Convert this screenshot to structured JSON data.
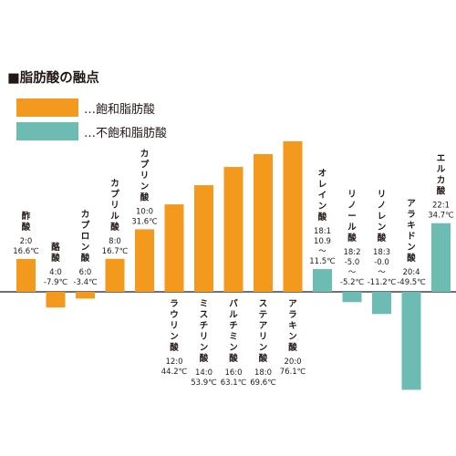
{
  "title": "■脂肪酸の融点",
  "legend": [
    {
      "label": "…飽和脂肪酸",
      "color": "#f39a1e"
    },
    {
      "label": "…不飽和脂肪酸",
      "color": "#6dbcb3"
    }
  ],
  "chart_data": {
    "type": "bar",
    "unit": "℃",
    "grid": false,
    "ylim": [
      -50,
      80
    ],
    "categories": [
      "酢酸",
      "酪酸",
      "カプロン酸",
      "カプリル酸",
      "カプリン酸",
      "ラウリン酸",
      "ミスチリン酸",
      "パルチミン酸",
      "ステアリン酸",
      "アラキン酸",
      "オレイン酸",
      "リノール酸",
      "リノレン酸",
      "アラキドン酸",
      "エルカ酸"
    ],
    "series": [
      {
        "name": "…飽和脂肪酸",
        "values": [
          16.6,
          -7.9,
          -3.4,
          16.7,
          31.6,
          44.2,
          53.9,
          63.1,
          69.6,
          76.1,
          null,
          null,
          null,
          null,
          null
        ]
      },
      {
        "name": "…不飽和脂肪酸",
        "values": [
          null,
          null,
          null,
          null,
          null,
          null,
          null,
          null,
          null,
          null,
          11.5,
          -5.2,
          -11.2,
          -49.5,
          34.7
        ]
      }
    ],
    "labels": [
      [
        "2:0",
        "16.6℃"
      ],
      [
        "4:0",
        "-7.9℃"
      ],
      [
        "6:0",
        "-3.4℃"
      ],
      [
        "8:0",
        "16.7℃"
      ],
      [
        "10:0",
        "31.6℃"
      ],
      [
        "12:0",
        "44.2℃"
      ],
      [
        "14:0",
        "53.9℃"
      ],
      [
        "16:0",
        "63.1℃"
      ],
      [
        "18:0",
        "69.6℃"
      ],
      [
        "20:0",
        "76.1℃"
      ],
      [
        "18:1",
        "10.9",
        "〜",
        "11.5℃"
      ],
      [
        "18:2",
        "-5.0",
        "〜",
        "-5.2℃"
      ],
      [
        "18:3",
        "-0.0",
        "〜",
        "-11.2℃"
      ],
      [
        "20:4",
        "-49.5℃"
      ],
      [
        "22:1",
        "34.7℃"
      ]
    ]
  }
}
